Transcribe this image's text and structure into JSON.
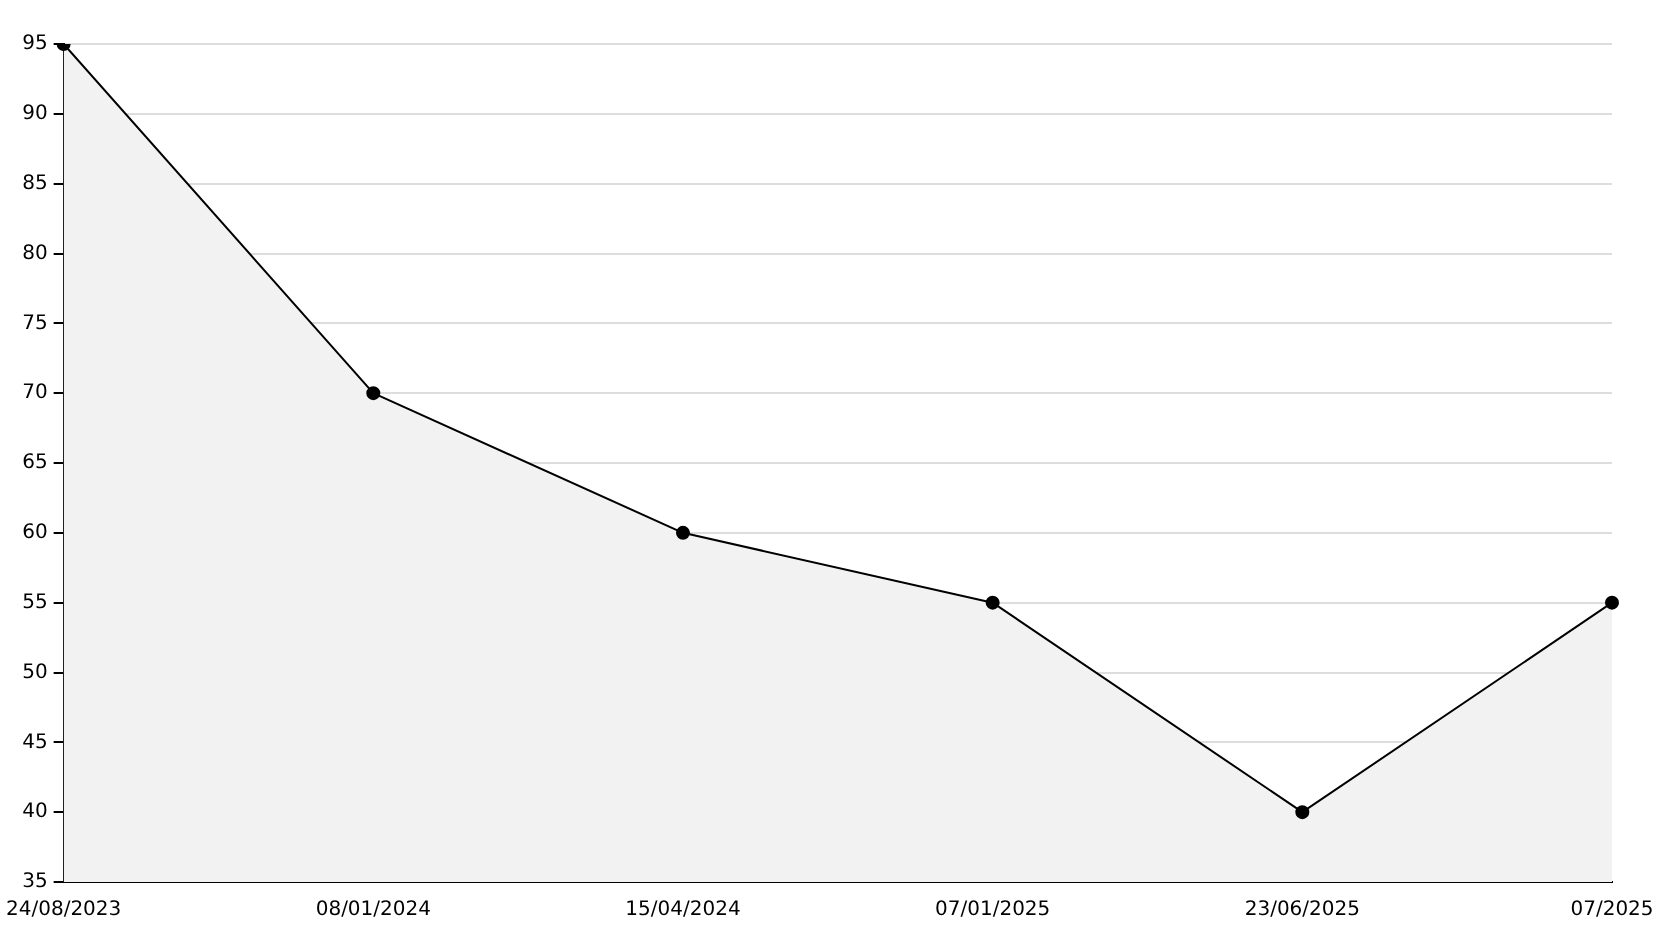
{
  "chart_data": {
    "type": "area",
    "categories": [
      "24/08/2023",
      "08/01/2024",
      "15/04/2024",
      "07/01/2025",
      "23/06/2025",
      "07/2025"
    ],
    "series": [
      {
        "color": "#000000",
        "values": [
          95,
          70,
          60,
          55,
          40,
          55
        ]
      }
    ],
    "ylim": [
      35,
      95
    ],
    "yticks": [
      35,
      40,
      45,
      50,
      55,
      60,
      65,
      70,
      75,
      80,
      85,
      90,
      95
    ],
    "grid": "y",
    "legend": false,
    "marker": "circle",
    "line_style": "solid"
  }
}
